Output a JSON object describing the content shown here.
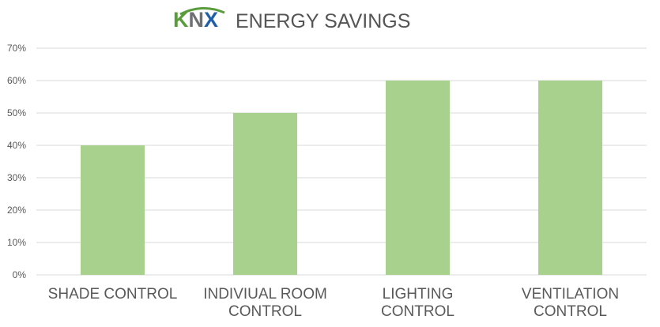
{
  "logo": {
    "k": "K",
    "n": "N",
    "x": "X"
  },
  "title": "ENERGY SAVINGS",
  "chart_data": {
    "type": "bar",
    "title": "ENERGY SAVINGS",
    "categories": [
      [
        "SHADE CONTROL"
      ],
      [
        "INDIVIUAL ROOM",
        "CONTROL"
      ],
      [
        "LIGHTING",
        "CONTROL"
      ],
      [
        "VENTILATION",
        "CONTROL"
      ]
    ],
    "values": [
      0.4,
      0.5,
      0.6,
      0.6
    ],
    "ylim": [
      0,
      0.7
    ],
    "yticks": [
      "0%",
      "10%",
      "20%",
      "30%",
      "40%",
      "50%",
      "60%",
      "70%"
    ],
    "grid": true,
    "bar_color": "#a9d18e",
    "grid_color": "#d9d9d9"
  }
}
